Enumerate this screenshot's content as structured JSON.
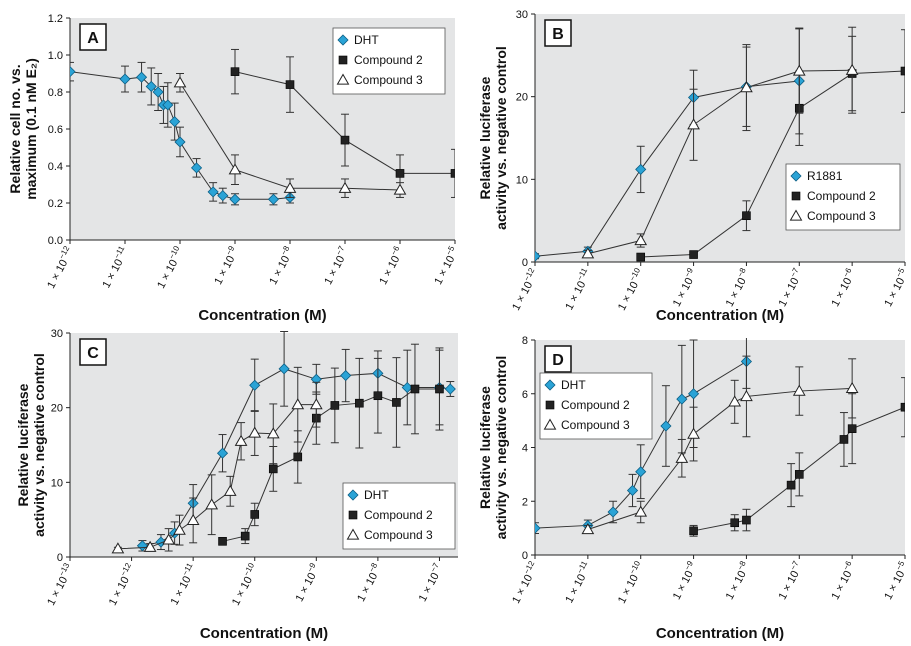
{
  "chart_data": [
    {
      "panel": "A",
      "type": "line",
      "xlabel": "Concentration (M)",
      "ylabel_lines": [
        "Relative cell no. vs.",
        "maximum (0.1 nM E₂)"
      ],
      "xscale": "log",
      "xlim": [
        1e-12,
        1e-05
      ],
      "ylim": [
        0,
        1.2
      ],
      "y_ticks": [
        0,
        0.2,
        0.4,
        0.6,
        0.8,
        1.0,
        1.2
      ],
      "y_tick_labels": [
        "0.0",
        "0.2",
        "0.4",
        "0.6",
        "0.8",
        "1.0",
        "1.2"
      ],
      "x_tick_exps": [
        -12,
        -11,
        -10,
        -9,
        -8,
        -7,
        -6,
        -5
      ],
      "x_tick_prefix": "1 × 10",
      "legend_position": "top-right",
      "grid": false,
      "series": [
        {
          "name": "DHT",
          "marker": "diamond",
          "x": [
            1e-12,
            1e-11,
            2e-11,
            3e-11,
            4e-11,
            5e-11,
            6e-11,
            8e-11,
            1e-10,
            2e-10,
            4e-10,
            6e-10,
            1e-09,
            5e-09,
            1e-08
          ],
          "y": [
            0.91,
            0.87,
            0.88,
            0.83,
            0.8,
            0.73,
            0.73,
            0.64,
            0.53,
            0.39,
            0.26,
            0.24,
            0.22,
            0.22,
            0.23
          ],
          "err": [
            0.05,
            0.07,
            0.08,
            0.1,
            0.1,
            0.1,
            0.12,
            0.1,
            0.08,
            0.05,
            0.05,
            0.04,
            0.03,
            0.03,
            0.03
          ]
        },
        {
          "name": "Compound 2",
          "marker": "square",
          "x": [
            1e-09,
            1e-08,
            1e-07,
            1e-06,
            1e-05
          ],
          "y": [
            0.91,
            0.84,
            0.54,
            0.36,
            0.36
          ],
          "err": [
            0.12,
            0.15,
            0.14,
            0.1,
            0.13
          ]
        },
        {
          "name": "Compound 3",
          "marker": "triangle",
          "x": [
            1e-10,
            1e-09,
            1e-08,
            1e-07,
            1e-06
          ],
          "y": [
            0.85,
            0.38,
            0.28,
            0.28,
            0.27
          ],
          "err": [
            0.05,
            0.08,
            0.05,
            0.05,
            0.04
          ]
        }
      ]
    },
    {
      "panel": "B",
      "type": "line",
      "xlabel": "Concentration (M)",
      "ylabel_lines": [
        "Relative luciferase",
        "activity vs. negative control"
      ],
      "xscale": "log",
      "xlim": [
        1e-12,
        1e-05
      ],
      "ylim": [
        0,
        30
      ],
      "y_ticks": [
        0,
        10,
        20,
        30
      ],
      "y_tick_labels": [
        "0",
        "10",
        "20",
        "30"
      ],
      "x_tick_exps": [
        -12,
        -11,
        -10,
        -9,
        -8,
        -7,
        -6,
        -5
      ],
      "x_tick_prefix": "1 × 10",
      "legend_position": "bottom-right",
      "grid": false,
      "series": [
        {
          "name": "R1881",
          "marker": "diamond",
          "x": [
            1e-12,
            1e-11,
            1e-10,
            1e-09,
            1e-08,
            1e-07
          ],
          "y": [
            0.7,
            1.3,
            11.2,
            19.9,
            21.2,
            21.9
          ],
          "err": [
            0.3,
            0.5,
            2.8,
            3.3,
            4.8,
            6.4
          ]
        },
        {
          "name": "Compound 2",
          "marker": "square",
          "x": [
            1e-10,
            1e-09,
            1e-08,
            1e-07,
            1e-06,
            1e-05
          ],
          "y": [
            0.6,
            0.9,
            5.6,
            18.6,
            22.8,
            23.1
          ],
          "err": [
            0.2,
            0.3,
            1.8,
            4.5,
            4.5,
            5.0
          ]
        },
        {
          "name": "Compound 3",
          "marker": "triangle",
          "x": [
            1e-11,
            1e-10,
            1e-09,
            1e-08,
            1e-07,
            1e-06
          ],
          "y": [
            1.0,
            2.6,
            16.6,
            21.1,
            23.1,
            23.2
          ],
          "err": [
            0.4,
            0.8,
            4.3,
            5.2,
            5.1,
            5.2
          ]
        }
      ]
    },
    {
      "panel": "C",
      "type": "line",
      "xlabel": "Concentration (M)",
      "ylabel_lines": [
        "Relative luciferase",
        "activity vs. negative control"
      ],
      "xscale": "log",
      "xlim": [
        1e-13,
        2e-07
      ],
      "ylim": [
        0,
        30
      ],
      "y_ticks": [
        0,
        10,
        20,
        30
      ],
      "y_tick_labels": [
        "0",
        "10",
        "20",
        "30"
      ],
      "x_tick_exps": [
        -13,
        -12,
        -11,
        -10,
        -9,
        -8,
        -7
      ],
      "x_tick_prefix": "1 × 10",
      "legend_position": "bottom-right",
      "grid": false,
      "series": [
        {
          "name": "DHT",
          "marker": "diamond",
          "x": [
            1.5e-12,
            3e-12,
            5e-12,
            1e-11,
            3e-11,
            1e-10,
            3e-10,
            1e-09,
            3e-09,
            1e-08,
            3e-08,
            1e-07,
            1.5e-07
          ],
          "y": [
            1.5,
            2.0,
            3.2,
            7.2,
            13.9,
            23.0,
            25.2,
            23.8,
            24.3,
            24.6,
            22.7,
            22.7,
            22.5
          ],
          "err": [
            0.7,
            1.0,
            1.5,
            2.5,
            2.5,
            3.5,
            5.0,
            2.0,
            3.5,
            3.0,
            5.0,
            5.0,
            1.0
          ]
        },
        {
          "name": "Compound 2",
          "marker": "square",
          "x": [
            3e-11,
            7e-11,
            1e-10,
            2e-10,
            5e-10,
            1e-09,
            2e-09,
            5e-09,
            1e-08,
            2e-08,
            4e-08,
            1e-07
          ],
          "y": [
            2.1,
            2.8,
            5.7,
            11.8,
            13.4,
            18.6,
            20.3,
            20.6,
            21.6,
            20.7,
            22.5,
            22.5
          ],
          "err": [
            0.3,
            1.0,
            1.5,
            3.0,
            3.5,
            3.5,
            5.0,
            6.0,
            5.0,
            6.0,
            6.0,
            5.5
          ]
        },
        {
          "name": "Compound 3",
          "marker": "triangle",
          "x": [
            6e-13,
            2e-12,
            4e-12,
            6e-12,
            1e-11,
            2e-11,
            4e-11,
            6e-11,
            1e-10,
            2e-10,
            5e-10,
            1e-09
          ],
          "y": [
            1.1,
            1.3,
            2.3,
            3.6,
            4.9,
            7.0,
            8.8,
            15.5,
            16.6,
            16.5,
            20.4,
            20.4
          ],
          "err": [
            0.2,
            0.5,
            1.5,
            2.0,
            3.0,
            4.0,
            2.0,
            2.5,
            3.0,
            4.0,
            5.0,
            3.0
          ]
        }
      ]
    },
    {
      "panel": "D",
      "type": "line",
      "xlabel": "Concentration (M)",
      "ylabel_lines": [
        "Relative luciferase",
        "activity vs. negative control"
      ],
      "xscale": "log",
      "xlim": [
        1e-12,
        1e-05
      ],
      "ylim": [
        0,
        8
      ],
      "y_ticks": [
        0,
        2,
        4,
        6,
        8
      ],
      "y_tick_labels": [
        "0",
        "2",
        "4",
        "6",
        "8"
      ],
      "x_tick_exps": [
        -12,
        -11,
        -10,
        -9,
        -8,
        -7,
        -6,
        -5
      ],
      "x_tick_prefix": "1 × 10",
      "legend_position": "top-left",
      "grid": false,
      "series": [
        {
          "name": "DHT",
          "marker": "diamond",
          "x": [
            1e-12,
            1e-11,
            3e-11,
            7e-11,
            1e-10,
            3e-10,
            6e-10,
            1e-09,
            1e-08
          ],
          "y": [
            1.0,
            1.1,
            1.6,
            2.4,
            3.1,
            4.8,
            5.8,
            6.0,
            7.2
          ],
          "err": [
            0.2,
            0.2,
            0.4,
            0.6,
            1.0,
            1.5,
            2.0,
            2.0,
            1.0
          ]
        },
        {
          "name": "Compound 2",
          "marker": "square",
          "x": [
            1e-09,
            6e-09,
            1e-08,
            7e-08,
            1e-07,
            7e-07,
            1e-06,
            1e-05
          ],
          "y": [
            0.9,
            1.2,
            1.3,
            2.6,
            3.0,
            4.3,
            4.7,
            5.5
          ],
          "err": [
            0.2,
            0.3,
            0.4,
            0.8,
            0.8,
            1.0,
            1.3,
            1.1
          ]
        },
        {
          "name": "Compound 3",
          "marker": "triangle",
          "x": [
            1e-11,
            1e-10,
            6e-10,
            1e-09,
            6e-09,
            1e-08,
            1e-07,
            1e-06
          ],
          "y": [
            0.95,
            1.6,
            3.6,
            4.5,
            5.7,
            5.9,
            6.1,
            6.2
          ],
          "err": [
            0.15,
            0.4,
            0.7,
            1.0,
            0.8,
            1.5,
            0.9,
            1.1
          ]
        }
      ]
    }
  ]
}
